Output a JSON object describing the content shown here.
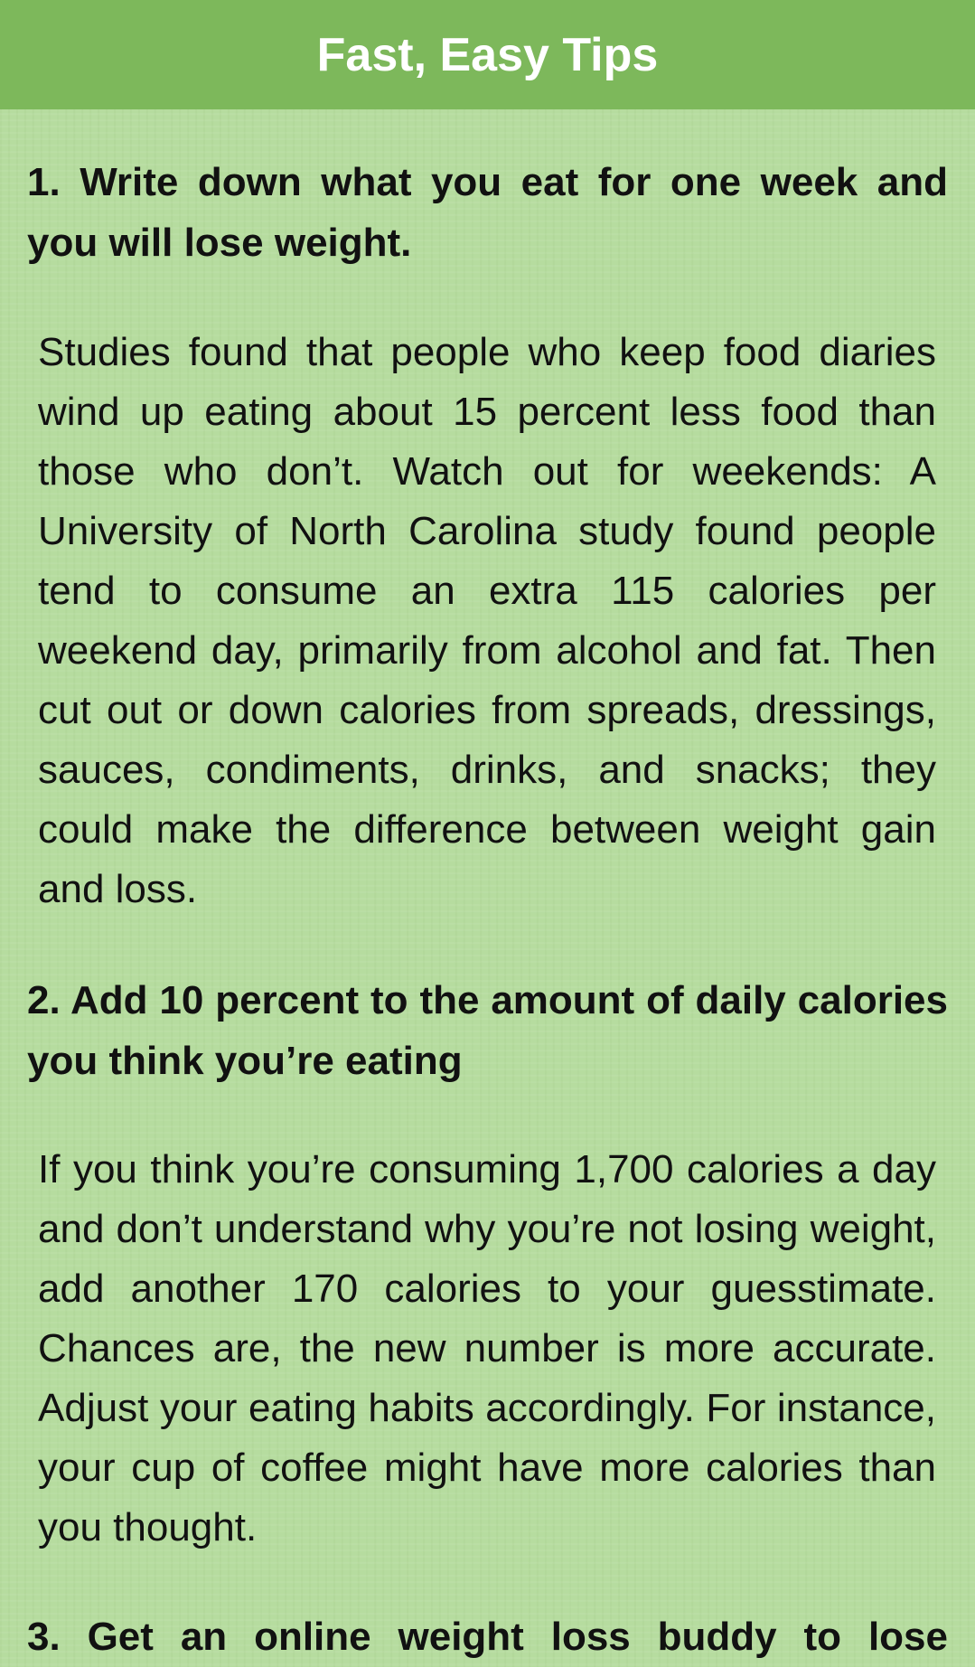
{
  "header": {
    "title": "Fast, Easy Tips"
  },
  "tips": [
    {
      "heading": "1. Write down what you eat for one week and you will lose weight.",
      "body": "Studies found that people who keep food diaries wind up eating about 15 percent less food than those who don’t. Watch out for weekends: A University of North Carolina study found people tend to consume an extra 115 calories per weekend day, primarily from alcohol and fat. Then cut out or down calories from spreads, dressings, sauces, condiments, drinks, and snacks; they could make the difference between weight gain and loss."
    },
    {
      "heading": "2. Add 10 percent to the amount of daily calories you think you’re eating",
      "body": "If you think you’re consuming 1,700 calories a day and don’t understand why you’re not losing weight, add another 170 calories to your guesstimate. Chances are, the new number is more accurate. Adjust your eating habits accordingly. For instance, your cup of coffee might have more calories than you thought."
    },
    {
      "heading": "3. Get an online weight loss buddy to lose"
    }
  ]
}
